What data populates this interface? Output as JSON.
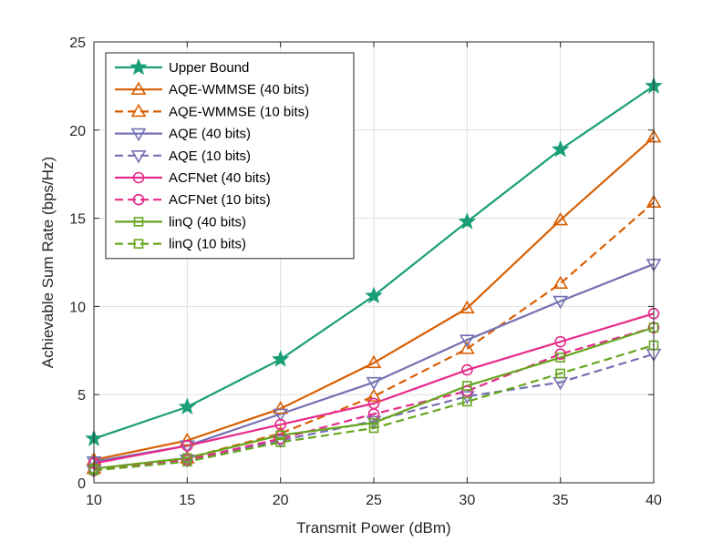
{
  "chart_data": {
    "type": "line",
    "title": "",
    "xlabel": "Transmit Power (dBm)",
    "ylabel": "Achievable Sum Rate (bps/Hz)",
    "x": [
      10,
      15,
      20,
      25,
      30,
      35,
      40
    ],
    "xlim": [
      10,
      40
    ],
    "ylim": [
      0,
      25
    ],
    "xticks": [
      "10",
      "15",
      "20",
      "25",
      "30",
      "35",
      "40"
    ],
    "yticks": [
      "0",
      "5",
      "10",
      "15",
      "20",
      "25"
    ],
    "grid": true,
    "legend_position": "top-left",
    "series": [
      {
        "name": "Upper Bound",
        "color": "#1a9e77",
        "dashed": false,
        "marker": "star",
        "values": [
          2.5,
          4.3,
          7.0,
          10.6,
          14.8,
          18.9,
          22.5
        ]
      },
      {
        "name": "AQE-WMMSE (40 bits)",
        "color": "#d95f02",
        "dashed": false,
        "marker": "triangle-up",
        "values": [
          1.3,
          2.4,
          4.2,
          6.8,
          9.9,
          14.9,
          19.6
        ]
      },
      {
        "name": "AQE-WMMSE (10 bits)",
        "color": "#d95f02",
        "dashed": true,
        "marker": "triangle-up",
        "values": [
          0.8,
          1.4,
          2.8,
          4.9,
          7.6,
          11.3,
          15.9
        ]
      },
      {
        "name": "AQE (40 bits)",
        "color": "#7570b3",
        "dashed": false,
        "marker": "triangle-down",
        "values": [
          1.2,
          2.1,
          3.9,
          5.7,
          8.1,
          10.3,
          12.4
        ]
      },
      {
        "name": "AQE (10 bits)",
        "color": "#7570b3",
        "dashed": true,
        "marker": "triangle-down",
        "values": [
          0.7,
          1.3,
          2.4,
          3.5,
          4.9,
          5.7,
          7.3
        ]
      },
      {
        "name": "ACFNet (40 bits)",
        "color": "#e7298a",
        "dashed": false,
        "marker": "circle",
        "values": [
          1.1,
          2.1,
          3.3,
          4.5,
          6.4,
          8.0,
          9.6
        ]
      },
      {
        "name": "ACFNet (10 bits)",
        "color": "#e7298a",
        "dashed": true,
        "marker": "circle",
        "values": [
          0.7,
          1.3,
          2.5,
          3.9,
          5.2,
          7.3,
          8.8
        ]
      },
      {
        "name": "linQ (40 bits)",
        "color": "#66a61e",
        "dashed": false,
        "marker": "square",
        "values": [
          0.8,
          1.4,
          2.7,
          3.4,
          5.5,
          7.1,
          8.8
        ]
      },
      {
        "name": "linQ (10 bits)",
        "color": "#66a61e",
        "dashed": true,
        "marker": "square",
        "values": [
          0.7,
          1.2,
          2.3,
          3.1,
          4.6,
          6.2,
          7.8
        ]
      }
    ]
  }
}
